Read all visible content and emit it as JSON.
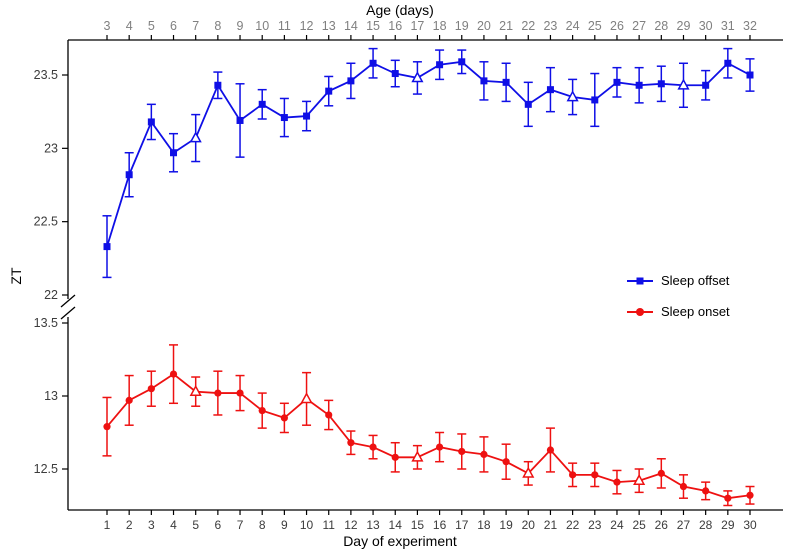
{
  "figure": {
    "background": "#ffffff"
  },
  "chart_data": {
    "type": "line",
    "title": "",
    "xlabel": "Day of experiment",
    "ylabel": "ZT",
    "top_axis": {
      "title": "Age (days)",
      "labels": [
        3,
        4,
        5,
        6,
        7,
        8,
        9,
        10,
        11,
        12,
        13,
        14,
        15,
        16,
        17,
        18,
        19,
        20,
        21,
        22,
        23,
        24,
        25,
        26,
        27,
        28,
        29,
        30,
        31,
        32
      ],
      "label_color": "#808080"
    },
    "x_days": [
      1,
      2,
      3,
      4,
      5,
      6,
      7,
      8,
      9,
      10,
      11,
      12,
      13,
      14,
      15,
      16,
      17,
      18,
      19,
      20,
      21,
      22,
      23,
      24,
      25,
      26,
      27,
      28,
      29,
      30
    ],
    "y_axis": {
      "upper_ticks": [
        22,
        22.5,
        23,
        23.5
      ],
      "lower_ticks": [
        12.5,
        13,
        13.5
      ],
      "axis_break_between": [
        13.5,
        22
      ],
      "tick_label_color": "#3c3c3c"
    },
    "grid": "off",
    "legend": {
      "position": "inside-right-middle"
    },
    "axis_color": "#000000",
    "series": [
      {
        "name": "Sleep offset",
        "color": "#0f0fe6",
        "marker": "square",
        "open_triangle_days": [
          5,
          15,
          22,
          27
        ],
        "values": [
          22.33,
          22.82,
          23.18,
          22.97,
          23.07,
          23.43,
          23.19,
          23.3,
          23.21,
          23.22,
          23.39,
          23.46,
          23.58,
          23.51,
          23.48,
          23.57,
          23.59,
          23.46,
          23.45,
          23.3,
          23.4,
          23.35,
          23.33,
          23.45,
          23.43,
          23.44,
          23.43,
          23.43,
          23.58,
          23.5
        ],
        "errors": [
          0.21,
          0.15,
          0.12,
          0.13,
          0.16,
          0.09,
          0.25,
          0.1,
          0.13,
          0.1,
          0.1,
          0.12,
          0.1,
          0.09,
          0.11,
          0.1,
          0.08,
          0.13,
          0.13,
          0.15,
          0.15,
          0.12,
          0.18,
          0.1,
          0.12,
          0.12,
          0.15,
          0.1,
          0.1,
          0.11
        ]
      },
      {
        "name": "Sleep onset",
        "color": "#ee1111",
        "marker": "circle",
        "open_triangle_days": [
          5,
          10,
          15,
          20,
          25
        ],
        "values": [
          12.79,
          12.97,
          13.05,
          13.15,
          13.03,
          13.02,
          13.02,
          12.9,
          12.85,
          12.98,
          12.87,
          12.68,
          12.65,
          12.58,
          12.58,
          12.65,
          12.62,
          12.6,
          12.55,
          12.47,
          12.63,
          12.46,
          12.46,
          12.41,
          12.42,
          12.47,
          12.38,
          12.35,
          12.3,
          12.32
        ],
        "errors": [
          0.2,
          0.17,
          0.12,
          0.2,
          0.1,
          0.15,
          0.12,
          0.12,
          0.1,
          0.18,
          0.1,
          0.08,
          0.08,
          0.1,
          0.08,
          0.1,
          0.12,
          0.12,
          0.12,
          0.08,
          0.15,
          0.08,
          0.08,
          0.08,
          0.08,
          0.1,
          0.08,
          0.06,
          0.05,
          0.06
        ]
      }
    ]
  }
}
